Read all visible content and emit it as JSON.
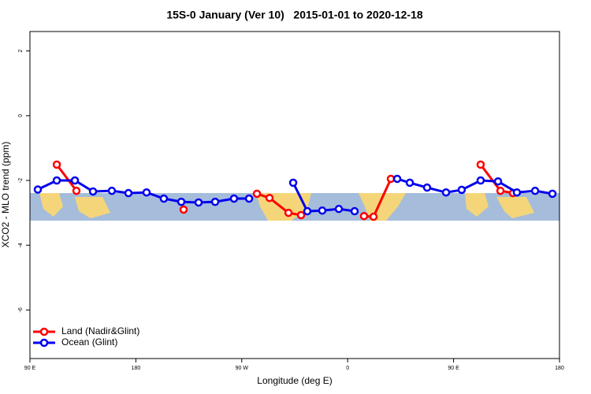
{
  "chart_data": {
    "type": "line",
    "title": "15S-0 January (Ver 10)   2015-01-01 to 2020-12-18",
    "xlabel": "Longitude (deg E)",
    "ylabel": "XCO2 - MLO trend (ppm)",
    "xlim": [
      90,
      540
    ],
    "ylim": [
      -7.5,
      2.6
    ],
    "xticks": [
      {
        "value": 90,
        "label": "90 E"
      },
      180,
      {
        "value": 270,
        "label": "90 W"
      },
      {
        "value": 360,
        "label": "0"
      },
      {
        "value": 450,
        "label": "90 E"
      },
      {
        "value": 540,
        "label": "180"
      }
    ],
    "yticks": [
      -6,
      -4,
      -2,
      0,
      2
    ],
    "legend": "bottomleft",
    "series": [
      {
        "name": "Land (Nadir&Glint)",
        "color": "#ff0000",
        "x": [
          112.8,
          129.5,
          null,
          220.6,
          null,
          282.9,
          293.6,
          309.7,
          320.4,
          null,
          373.9,
          382.0,
          396.7,
          null,
          473.0,
          489.8,
          500.5
        ],
        "values": [
          -1.51,
          -2.32,
          null,
          -2.9,
          null,
          -2.41,
          -2.54,
          -3.0,
          -3.07,
          null,
          -3.1,
          -3.12,
          -1.95,
          null,
          -1.51,
          -2.32,
          -2.39
        ]
      },
      {
        "name": "Ocean (Glint)",
        "color": "#0000ee",
        "x": [
          96.7,
          112.8,
          128.2,
          143.6,
          159.6,
          173.7,
          189.1,
          203.8,
          218.6,
          233.3,
          247.4,
          263.4,
          276.2,
          null,
          313.7,
          325.7,
          338.4,
          352.5,
          365.9,
          null,
          402.1,
          412.8,
          427.5,
          443.6,
          456.9,
          473.0,
          487.8,
          503.8,
          519.3,
          534.0
        ],
        "values": [
          -2.28,
          -2.0,
          -2.0,
          -2.34,
          -2.32,
          -2.39,
          -2.37,
          -2.56,
          -2.66,
          -2.68,
          -2.66,
          -2.56,
          -2.56,
          null,
          -2.07,
          -2.95,
          -2.93,
          -2.88,
          -2.95,
          null,
          -1.95,
          -2.07,
          -2.22,
          -2.37,
          -2.29,
          -2.0,
          -2.03,
          -2.37,
          -2.32,
          -2.41
        ]
      }
    ]
  }
}
